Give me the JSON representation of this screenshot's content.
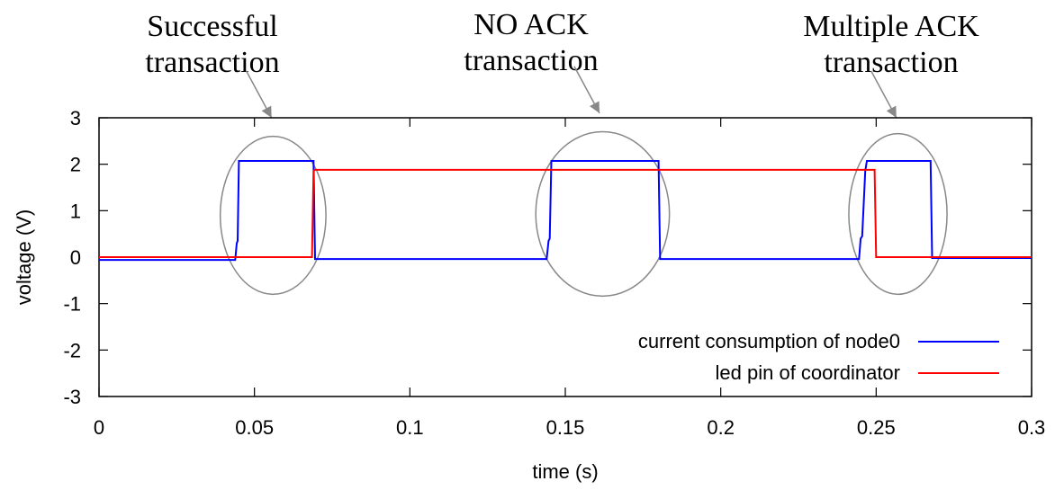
{
  "chart_data": {
    "type": "line",
    "title": "",
    "xlabel": "time (s)",
    "ylabel": "voltage (V)",
    "xlim": [
      0,
      0.3
    ],
    "ylim": [
      -3,
      3
    ],
    "x_ticks": [
      "0",
      "0.05",
      "0.1",
      "0.15",
      "0.2",
      "0.25",
      "0.3"
    ],
    "x_tick_values": [
      0,
      0.05,
      0.1,
      0.15,
      0.2,
      0.25,
      0.3
    ],
    "y_ticks": [
      "3",
      "2",
      "1",
      "0",
      "-1",
      "-2",
      "-3"
    ],
    "y_tick_values": [
      3,
      2,
      1,
      0,
      -1,
      -2,
      -3
    ],
    "grid": false,
    "legend_position": "bottom-right",
    "series": [
      {
        "name": "current consumption of node0",
        "color": "#0000ff",
        "x": [
          0,
          0.0438,
          0.0443,
          0.0446,
          0.045,
          0.069,
          0.0695,
          0.144,
          0.1446,
          0.145,
          0.1455,
          0.18,
          0.1805,
          0.2445,
          0.245,
          0.2455,
          0.2465,
          0.247,
          0.2675,
          0.268,
          0.3
        ],
        "y": [
          -0.06,
          -0.06,
          0.3,
          0.35,
          2.07,
          2.07,
          -0.04,
          -0.04,
          0.35,
          0.4,
          2.07,
          2.07,
          -0.04,
          -0.04,
          0.4,
          0.45,
          1.85,
          2.07,
          2.07,
          -0.02,
          -0.02
        ]
      },
      {
        "name": "led pin of coordinator",
        "color": "#ff0000",
        "x": [
          0,
          0.0685,
          0.069,
          0.0695,
          0.2495,
          0.25,
          0.3
        ],
        "y": [
          0.0,
          0.0,
          1.85,
          1.88,
          1.88,
          0.0,
          0.0
        ]
      }
    ],
    "annotations": [
      {
        "label": "Successful transaction",
        "lines": [
          "Successful",
          "transaction"
        ],
        "ellipse_center": [
          0.056,
          0.9
        ],
        "ellipse_radii": [
          0.017,
          1.7
        ],
        "arrow_to": [
          0.0555,
          3.0
        ]
      },
      {
        "label": "NO ACK transaction",
        "lines": [
          "NO ACK",
          "transaction"
        ],
        "ellipse_center": [
          0.162,
          0.93
        ],
        "ellipse_radii": [
          0.0215,
          1.77
        ],
        "arrow_to": [
          0.161,
          3.1
        ]
      },
      {
        "label": "Multiple ACK transaction",
        "lines": [
          "Multiple ACK",
          "transaction"
        ],
        "ellipse_center": [
          0.257,
          0.93
        ],
        "ellipse_radii": [
          0.0158,
          1.73
        ],
        "arrow_to": [
          0.2565,
          3.0
        ]
      }
    ]
  }
}
